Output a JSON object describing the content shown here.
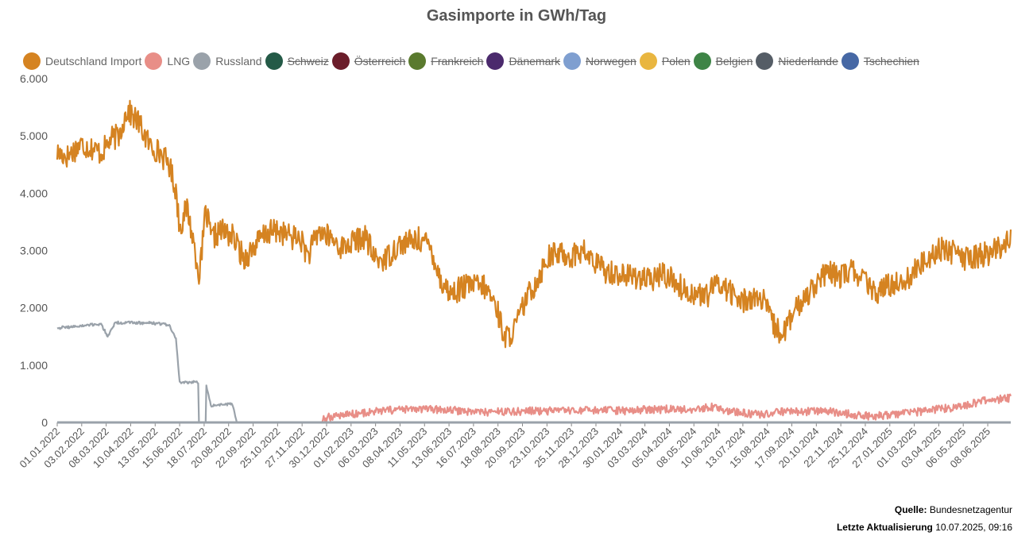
{
  "chart_data": {
    "type": "line",
    "title": "Gasimporte in GWh/Tag",
    "xlabel": "",
    "ylabel": "",
    "ylim": [
      0,
      6000
    ],
    "y_ticks": [
      "0",
      "1.000",
      "2.000",
      "3.000",
      "4.000",
      "5.000",
      "6.000"
    ],
    "x_range": [
      "2022-01-01",
      "2025-07-09"
    ],
    "x_ticks": [
      "01.01.2022",
      "03.02.2022",
      "08.03.2022",
      "10.04.2022",
      "13.05.2022",
      "15.06.2022",
      "18.07.2022",
      "20.08.2022",
      "22.09.2022",
      "25.10.2022",
      "27.11.2022",
      "30.12.2022",
      "01.02.2023",
      "06.03.2023",
      "08.04.2023",
      "11.05.2023",
      "13.06.2023",
      "16.07.2023",
      "18.08.2023",
      "20.09.2023",
      "23.10.2023",
      "25.11.2023",
      "28.12.2023",
      "30.01.2024",
      "03.03.2024",
      "05.04.2024",
      "08.05.2024",
      "10.06.2024",
      "13.07.2024",
      "15.08.2024",
      "17.09.2024",
      "20.10.2024",
      "22.11.2024",
      "25.12.2024",
      "27.01.2025",
      "01.03.2025",
      "03.04.2025",
      "06.05.2025",
      "08.06.2025"
    ],
    "grid": false,
    "legend_position": "top",
    "series": [
      {
        "name": "Deutschland Import",
        "color": "#d58321",
        "visible": true,
        "points": [
          [
            "2022-01-01",
            4700
          ],
          [
            "2022-01-15",
            4650
          ],
          [
            "2022-02-01",
            4850
          ],
          [
            "2022-02-15",
            4800
          ],
          [
            "2022-03-01",
            4700
          ],
          [
            "2022-03-15",
            4950
          ],
          [
            "2022-03-25",
            5000
          ],
          [
            "2022-04-05",
            5450
          ],
          [
            "2022-04-20",
            5250
          ],
          [
            "2022-05-05",
            4850
          ],
          [
            "2022-05-20",
            4700
          ],
          [
            "2022-06-01",
            4500
          ],
          [
            "2022-06-10",
            4050
          ],
          [
            "2022-06-15",
            3400
          ],
          [
            "2022-06-25",
            3750
          ],
          [
            "2022-07-05",
            3050
          ],
          [
            "2022-07-12",
            2550
          ],
          [
            "2022-07-20",
            3700
          ],
          [
            "2022-07-28",
            3200
          ],
          [
            "2022-08-10",
            3350
          ],
          [
            "2022-08-25",
            3250
          ],
          [
            "2022-09-10",
            2850
          ],
          [
            "2022-09-25",
            3100
          ],
          [
            "2022-10-10",
            3300
          ],
          [
            "2022-10-25",
            3350
          ],
          [
            "2022-11-10",
            3250
          ],
          [
            "2022-11-25",
            3200
          ],
          [
            "2022-12-05",
            2900
          ],
          [
            "2022-12-20",
            3350
          ],
          [
            "2023-01-05",
            3200
          ],
          [
            "2023-01-20",
            3050
          ],
          [
            "2023-02-05",
            3150
          ],
          [
            "2023-02-20",
            3250
          ],
          [
            "2023-03-05",
            2850
          ],
          [
            "2023-03-20",
            2850
          ],
          [
            "2023-04-05",
            3100
          ],
          [
            "2023-04-20",
            3150
          ],
          [
            "2023-05-05",
            3200
          ],
          [
            "2023-05-20",
            3050
          ],
          [
            "2023-06-01",
            2500
          ],
          [
            "2023-06-15",
            2250
          ],
          [
            "2023-07-01",
            2350
          ],
          [
            "2023-07-15",
            2400
          ],
          [
            "2023-08-01",
            2350
          ],
          [
            "2023-08-15",
            2050
          ],
          [
            "2023-08-28",
            1450
          ],
          [
            "2023-09-10",
            1650
          ],
          [
            "2023-09-25",
            2150
          ],
          [
            "2023-10-10",
            2500
          ],
          [
            "2023-10-25",
            2900
          ],
          [
            "2023-11-10",
            2950
          ],
          [
            "2023-11-25",
            2900
          ],
          [
            "2023-12-10",
            3000
          ],
          [
            "2023-12-25",
            2800
          ],
          [
            "2024-01-10",
            2650
          ],
          [
            "2024-01-25",
            2600
          ],
          [
            "2024-02-10",
            2550
          ],
          [
            "2024-02-25",
            2550
          ],
          [
            "2024-03-10",
            2450
          ],
          [
            "2024-03-25",
            2600
          ],
          [
            "2024-04-10",
            2500
          ],
          [
            "2024-04-25",
            2300
          ],
          [
            "2024-05-10",
            2250
          ],
          [
            "2024-05-25",
            2200
          ],
          [
            "2024-06-10",
            2450
          ],
          [
            "2024-06-25",
            2300
          ],
          [
            "2024-07-10",
            2100
          ],
          [
            "2024-07-25",
            2200
          ],
          [
            "2024-08-10",
            2100
          ],
          [
            "2024-08-25",
            1650
          ],
          [
            "2024-09-05",
            1550
          ],
          [
            "2024-09-20",
            1900
          ],
          [
            "2024-10-05",
            2200
          ],
          [
            "2024-10-20",
            2450
          ],
          [
            "2024-11-05",
            2600
          ],
          [
            "2024-11-20",
            2550
          ],
          [
            "2024-12-05",
            2650
          ],
          [
            "2024-12-20",
            2550
          ],
          [
            "2025-01-05",
            2250
          ],
          [
            "2025-01-20",
            2350
          ],
          [
            "2025-02-05",
            2450
          ],
          [
            "2025-02-20",
            2500
          ],
          [
            "2025-03-10",
            2750
          ],
          [
            "2025-03-25",
            2950
          ],
          [
            "2025-04-10",
            3050
          ],
          [
            "2025-04-25",
            2950
          ],
          [
            "2025-05-10",
            2850
          ],
          [
            "2025-05-25",
            2900
          ],
          [
            "2025-06-10",
            2950
          ],
          [
            "2025-06-25",
            3050
          ],
          [
            "2025-07-09",
            3250
          ]
        ]
      },
      {
        "name": "LNG",
        "color": "#e88e87",
        "visible": true,
        "points": [
          [
            "2022-12-20",
            0
          ],
          [
            "2022-12-25",
            60
          ],
          [
            "2023-01-10",
            120
          ],
          [
            "2023-02-01",
            150
          ],
          [
            "2023-03-01",
            180
          ],
          [
            "2023-04-01",
            220
          ],
          [
            "2023-05-01",
            230
          ],
          [
            "2023-06-01",
            220
          ],
          [
            "2023-07-01",
            200
          ],
          [
            "2023-08-01",
            180
          ],
          [
            "2023-09-01",
            190
          ],
          [
            "2023-10-01",
            200
          ],
          [
            "2023-11-01",
            200
          ],
          [
            "2023-12-01",
            200
          ],
          [
            "2024-01-01",
            210
          ],
          [
            "2024-02-01",
            200
          ],
          [
            "2024-03-01",
            220
          ],
          [
            "2024-04-01",
            230
          ],
          [
            "2024-05-01",
            220
          ],
          [
            "2024-06-01",
            270
          ],
          [
            "2024-07-01",
            180
          ],
          [
            "2024-08-01",
            140
          ],
          [
            "2024-09-01",
            180
          ],
          [
            "2024-10-01",
            190
          ],
          [
            "2024-11-01",
            200
          ],
          [
            "2024-12-01",
            150
          ],
          [
            "2025-01-01",
            110
          ],
          [
            "2025-02-01",
            140
          ],
          [
            "2025-03-01",
            180
          ],
          [
            "2025-04-01",
            230
          ],
          [
            "2025-05-01",
            270
          ],
          [
            "2025-06-01",
            370
          ],
          [
            "2025-07-09",
            430
          ]
        ]
      },
      {
        "name": "Russland",
        "color": "#9aa2aa",
        "visible": true,
        "points": [
          [
            "2022-01-01",
            1650
          ],
          [
            "2022-02-01",
            1680
          ],
          [
            "2022-03-01",
            1720
          ],
          [
            "2022-03-10",
            1500
          ],
          [
            "2022-03-20",
            1740
          ],
          [
            "2022-04-15",
            1740
          ],
          [
            "2022-05-15",
            1730
          ],
          [
            "2022-06-01",
            1700
          ],
          [
            "2022-06-10",
            1450
          ],
          [
            "2022-06-15",
            700
          ],
          [
            "2022-07-10",
            700
          ],
          [
            "2022-07-11",
            0
          ],
          [
            "2022-07-20",
            0
          ],
          [
            "2022-07-21",
            650
          ],
          [
            "2022-07-27",
            300
          ],
          [
            "2022-08-25",
            320
          ],
          [
            "2022-08-31",
            0
          ],
          [
            "2025-07-09",
            0
          ]
        ]
      },
      {
        "name": "Schweiz",
        "color": "#245a47",
        "visible": false,
        "points": []
      },
      {
        "name": "Österreich",
        "color": "#6b1d2a",
        "visible": false,
        "points": []
      },
      {
        "name": "Frankreich",
        "color": "#5a7a2e",
        "visible": false,
        "points": []
      },
      {
        "name": "Dänemark",
        "color": "#4b2a6d",
        "visible": false,
        "points": []
      },
      {
        "name": "Norwegen",
        "color": "#7f9fd0",
        "visible": false,
        "points": []
      },
      {
        "name": "Polen",
        "color": "#e9b640",
        "visible": false,
        "points": []
      },
      {
        "name": "Belgien",
        "color": "#3e8446",
        "visible": false,
        "points": []
      },
      {
        "name": "Niederlande",
        "color": "#555d66",
        "visible": false,
        "points": []
      },
      {
        "name": "Tschechien",
        "color": "#4668a5",
        "visible": false,
        "points": []
      }
    ]
  },
  "source": {
    "label": "Quelle:",
    "value": "Bundesnetzagentur",
    "updated_label": "Letzte Aktualisierung",
    "updated_value": "10.07.2025, 09:16"
  }
}
